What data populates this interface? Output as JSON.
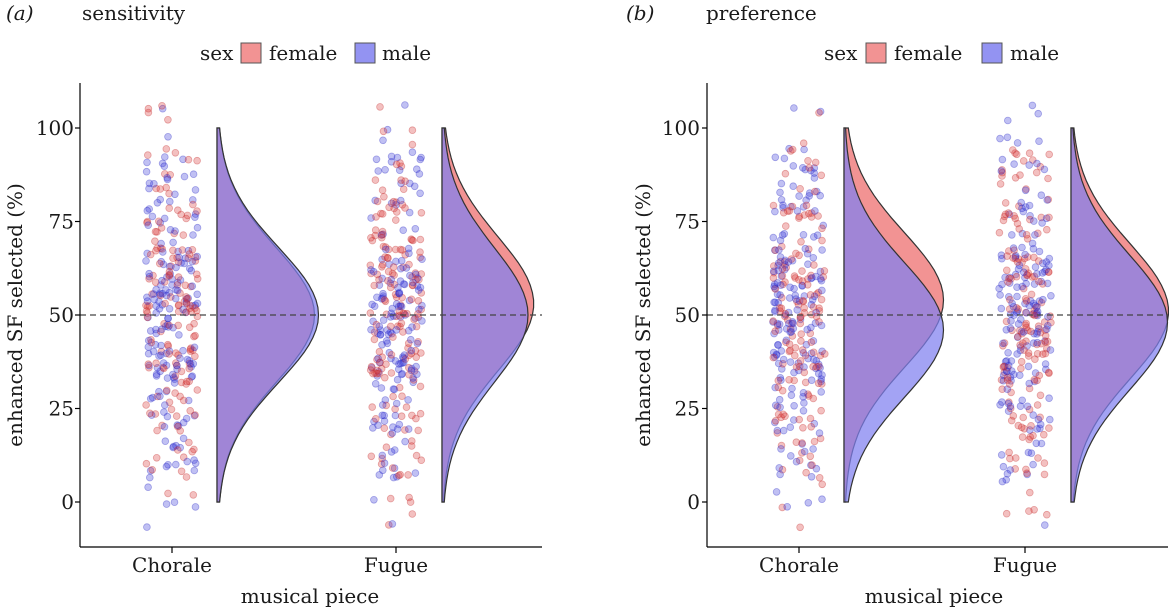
{
  "chart_data": [
    {
      "type": "raincloud",
      "panel_label": "(a)",
      "title": "sensitivity",
      "xlabel": "musical piece",
      "ylabel": "enhanced SF selected (%)",
      "categories": [
        "Chorale",
        "Fugue"
      ],
      "yticks": [
        0,
        25,
        50,
        75,
        100
      ],
      "ylim": [
        -12,
        112
      ],
      "reference_line": 50,
      "legend": {
        "title": "sex",
        "entries": [
          "female",
          "male"
        ],
        "placement": "top"
      },
      "series": [
        {
          "name": "female",
          "color": "#f08080",
          "density_peak": {
            "Chorale": 50,
            "Fugue": 53
          },
          "density_height": {
            "Chorale": 0.96,
            "Fugue": 0.96
          }
        },
        {
          "name": "male",
          "color": "#8080f0",
          "density_peak": {
            "Chorale": 50,
            "Fugue": 50
          },
          "density_height": {
            "Chorale": 1.0,
            "Fugue": 0.9
          }
        }
      ],
      "point_levels": [
        0,
        12.5,
        25,
        37.5,
        50,
        62.5,
        75,
        87.5,
        100
      ]
    },
    {
      "type": "raincloud",
      "panel_label": "(b)",
      "title": "preference",
      "xlabel": "musical piece",
      "ylabel": "enhanced SF selected (%)",
      "categories": [
        "Chorale",
        "Fugue"
      ],
      "yticks": [
        0,
        25,
        50,
        75,
        100
      ],
      "ylim": [
        -12,
        112
      ],
      "reference_line": 50,
      "legend": {
        "title": "sex",
        "entries": [
          "female",
          "male"
        ],
        "placement": "top"
      },
      "series": [
        {
          "name": "female",
          "color": "#f08080",
          "density_peak": {
            "Chorale": 54,
            "Fugue": 51
          },
          "density_height": {
            "Chorale": 1.0,
            "Fugue": 1.0
          }
        },
        {
          "name": "male",
          "color": "#8080f0",
          "density_peak": {
            "Chorale": 46,
            "Fugue": 48
          },
          "density_height": {
            "Chorale": 1.0,
            "Fugue": 0.99
          }
        }
      ],
      "point_levels": [
        0,
        12.5,
        25,
        37.5,
        50,
        62.5,
        75,
        87.5,
        100
      ]
    }
  ]
}
